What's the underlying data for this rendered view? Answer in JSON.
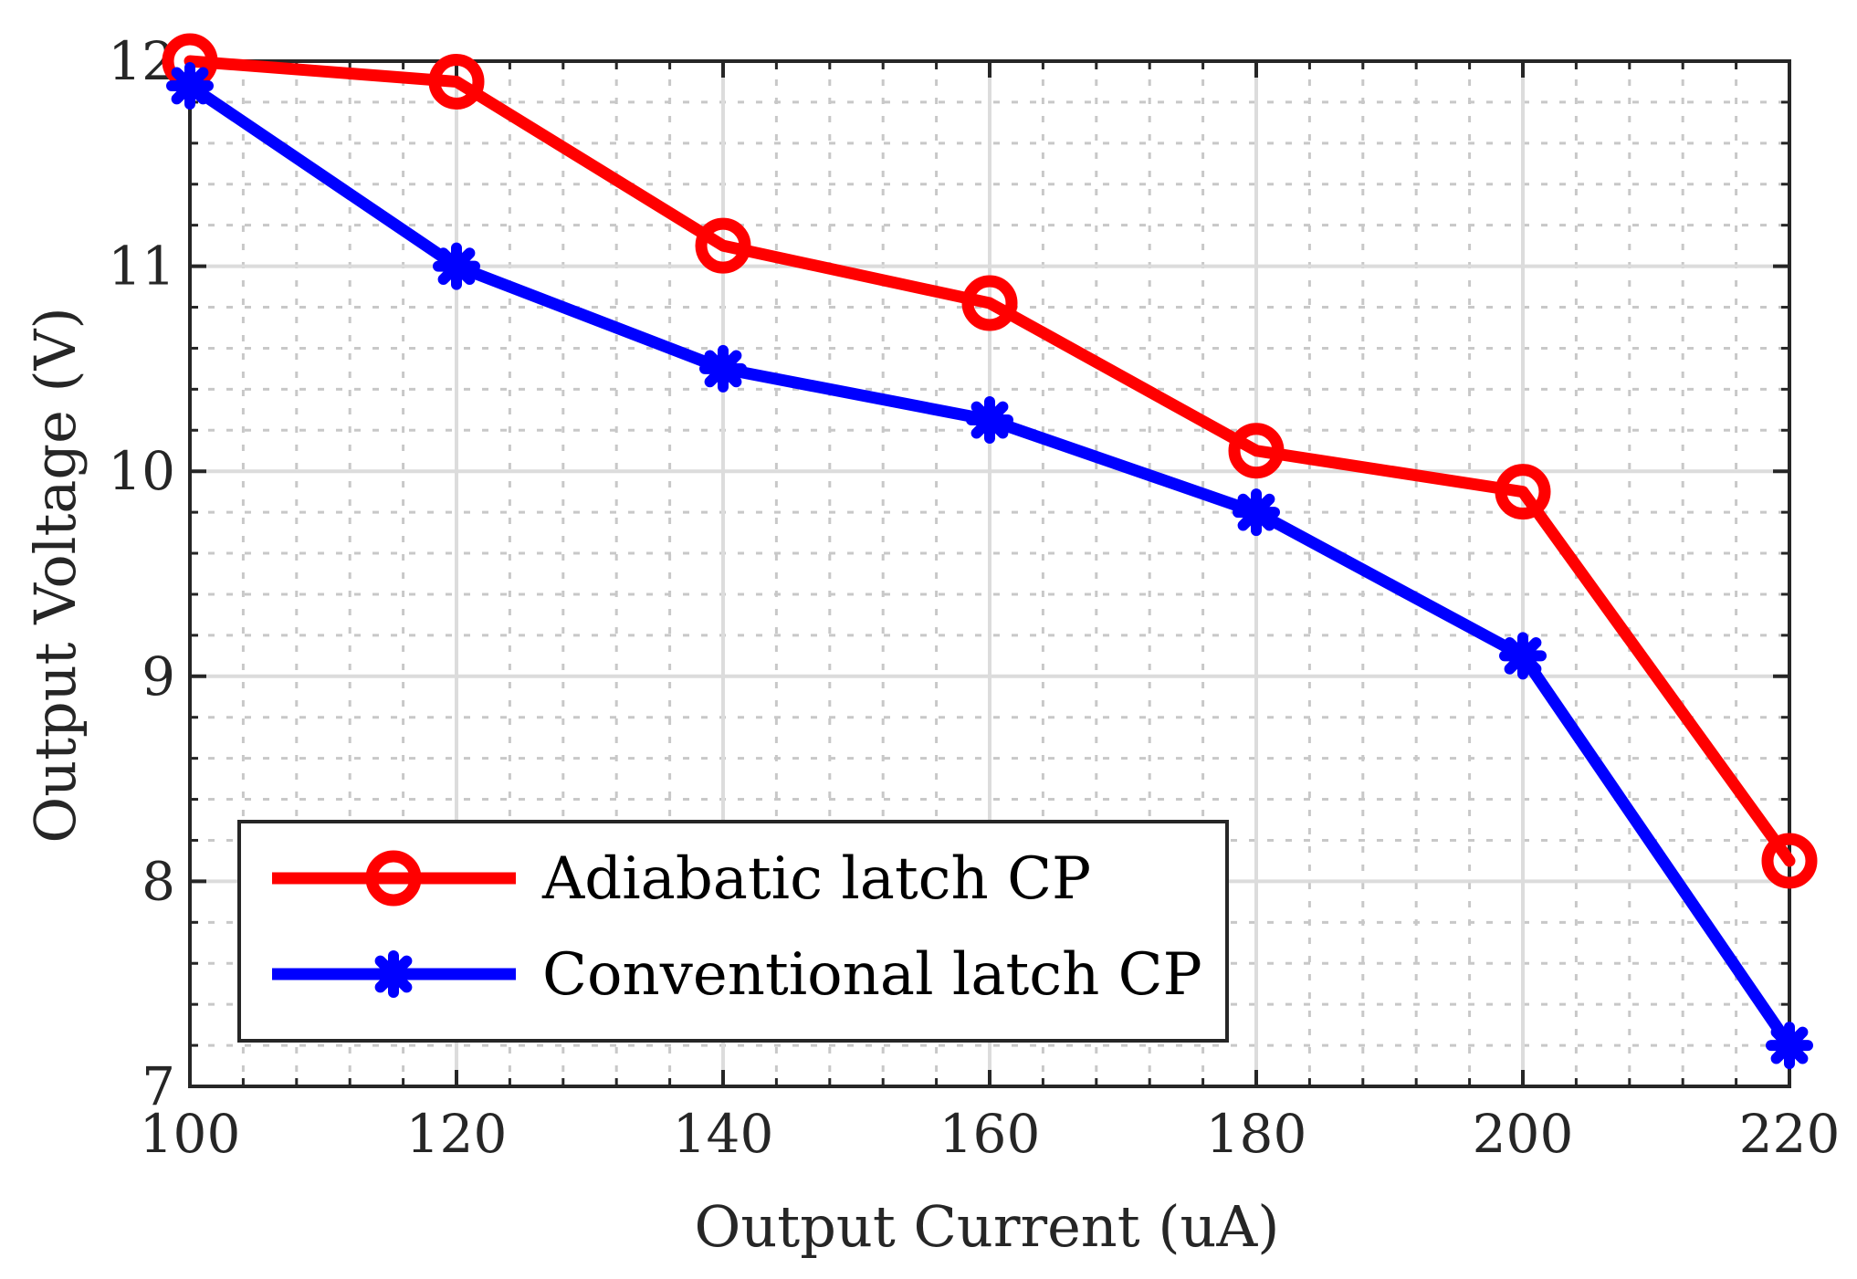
{
  "chart_data": {
    "type": "line",
    "title": "",
    "xlabel": "Output Current (uA)",
    "ylabel": "Output Voltage (V)",
    "x": [
      100,
      120,
      140,
      160,
      180,
      200,
      220
    ],
    "xlim": [
      100,
      220
    ],
    "ylim": [
      7,
      12
    ],
    "xticks": [
      100,
      120,
      140,
      160,
      180,
      200,
      220
    ],
    "yticks": [
      7,
      8,
      9,
      10,
      11,
      12
    ],
    "grid": true,
    "minor_grid": true,
    "legend_position": "bottom-left",
    "series": [
      {
        "name": "Adiabatic latch CP",
        "color": "#ff0000",
        "marker": "circle",
        "values": [
          12.0,
          11.9,
          11.1,
          10.82,
          10.1,
          9.9,
          8.1
        ]
      },
      {
        "name": "Conventional latch CP",
        "color": "#0000ff",
        "marker": "asterisk",
        "values": [
          11.88,
          11.0,
          10.5,
          10.25,
          9.8,
          9.1,
          7.2
        ]
      }
    ]
  }
}
